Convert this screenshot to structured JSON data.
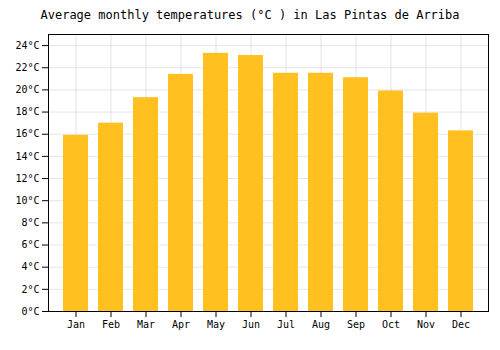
{
  "chart_data": {
    "type": "bar",
    "title": "Average monthly temperatures (°C ) in Las Pintas de Arriba",
    "categories": [
      "Jan",
      "Feb",
      "Mar",
      "Apr",
      "May",
      "Jun",
      "Jul",
      "Aug",
      "Sep",
      "Oct",
      "Nov",
      "Dec"
    ],
    "values": [
      15.9,
      17.0,
      19.3,
      21.4,
      23.3,
      23.1,
      21.5,
      21.5,
      21.1,
      19.9,
      17.9,
      16.3
    ],
    "color": "#FFC020",
    "ylim": [
      0,
      25
    ],
    "yticks": [
      {
        "value": 0,
        "label": "0°C"
      },
      {
        "value": 2,
        "label": "2°C"
      },
      {
        "value": 4,
        "label": "4°C"
      },
      {
        "value": 6,
        "label": "6°C"
      },
      {
        "value": 8,
        "label": "8°C"
      },
      {
        "value": 10,
        "label": "10°C"
      },
      {
        "value": 12,
        "label": "12°C"
      },
      {
        "value": 14,
        "label": "14°C"
      },
      {
        "value": 16,
        "label": "16°C"
      },
      {
        "value": 18,
        "label": "18°C"
      },
      {
        "value": 20,
        "label": "20°C"
      },
      {
        "value": 22,
        "label": "22°C"
      },
      {
        "value": 24,
        "label": "24°C"
      }
    ],
    "grid": true
  }
}
